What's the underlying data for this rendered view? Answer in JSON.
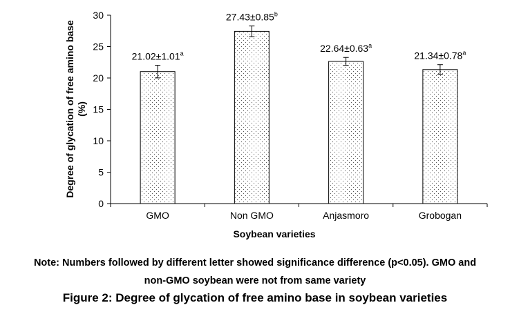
{
  "chart_data": {
    "type": "bar",
    "categories": [
      "GMO",
      "Non GMO",
      "Anjasmoro",
      "Grobogan"
    ],
    "values": [
      21.02,
      27.43,
      22.64,
      21.34
    ],
    "errors": [
      1.01,
      0.85,
      0.63,
      0.78
    ],
    "value_labels": [
      "21.02±1.01",
      "27.43±0.85",
      "22.64±0.63",
      "21.34±0.78"
    ],
    "letters": [
      "a",
      "b",
      "a",
      "a"
    ],
    "xlabel": "Soybean varieties",
    "ylabel_line1": "Degree of glycation of free amino base",
    "ylabel_line2": "(%)",
    "ylim": [
      0,
      30
    ],
    "yticks": [
      0,
      5,
      10,
      15,
      20,
      25,
      30
    ],
    "bar_fill": "dotted pattern",
    "grid": false
  },
  "note": {
    "line1": "Note:  Numbers followed by different letter showed significance difference (p<0.05). GMO and",
    "line2": "non-GMO soybean were not from same variety"
  },
  "caption": "Figure 2: Degree of glycation of free amino base in soybean varieties"
}
